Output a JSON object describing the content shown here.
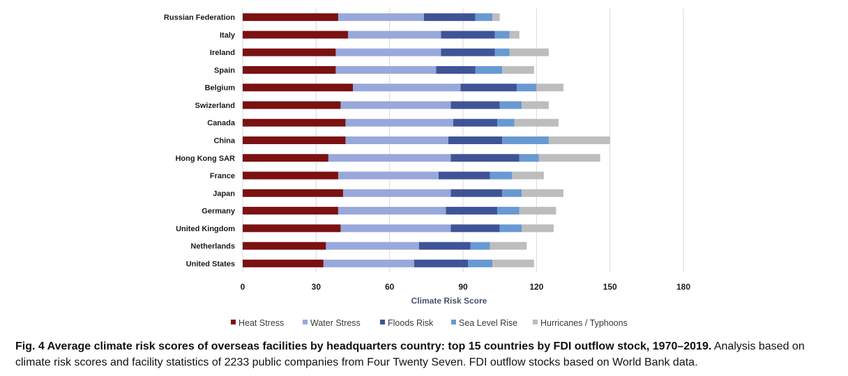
{
  "chart_data": {
    "type": "bar",
    "orientation": "horizontal",
    "stacked": true,
    "categories": [
      "Russian Federation",
      "Italy",
      "Ireland",
      "Spain",
      "Belgium",
      "Swizerland",
      "Canada",
      "China",
      "Hong Kong SAR",
      "France",
      "Japan",
      "Germany",
      "United Kingdom",
      "Netherlands",
      "United States"
    ],
    "series": [
      {
        "name": "Heat Stress",
        "color": "#7b1111",
        "values": [
          39,
          43,
          38,
          38,
          45,
          40,
          42,
          42,
          35,
          39,
          41,
          39,
          40,
          34,
          33
        ]
      },
      {
        "name": "Water Stress",
        "color": "#98a8db",
        "values": [
          35,
          38,
          43,
          41,
          44,
          45,
          44,
          42,
          50,
          41,
          44,
          44,
          45,
          38,
          37
        ]
      },
      {
        "name": "Floods Risk",
        "color": "#3f5497",
        "values": [
          21,
          22,
          22,
          16,
          23,
          20,
          18,
          22,
          28,
          21,
          21,
          21,
          20,
          21,
          22
        ]
      },
      {
        "name": "Sea Level Rise",
        "color": "#6999d3",
        "values": [
          7,
          6,
          6,
          11,
          8,
          9,
          7,
          19,
          8,
          9,
          8,
          9,
          9,
          8,
          10
        ]
      },
      {
        "name": "Hurricanes / Typhoons",
        "color": "#bdbdbd",
        "values": [
          3,
          4,
          16,
          13,
          11,
          11,
          18,
          25,
          25,
          13,
          17,
          15,
          13,
          15,
          17
        ]
      }
    ],
    "xlabel": "Climate Risk Score",
    "ylabel": "",
    "xlim": [
      0,
      180
    ],
    "xticks": [
      0,
      30,
      60,
      90,
      120,
      150,
      180
    ],
    "grid": true,
    "legend_position": "bottom"
  },
  "caption": {
    "bold": "Fig. 4 Average climate risk scores of overseas facilities by headquarters country: top 15 countries by FDI outflow stock, 1970–2019.",
    "text": " Analysis based on climate risk scores and facility statistics of 2233 public companies from Four Twenty Seven. FDI outflow stocks based on World Bank data."
  }
}
